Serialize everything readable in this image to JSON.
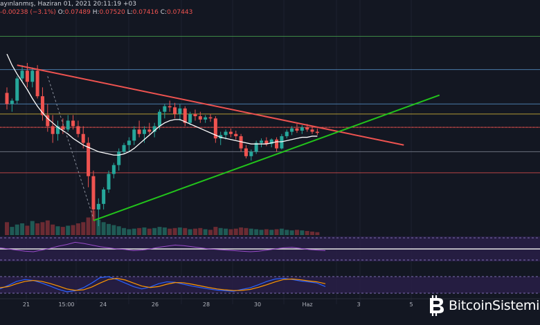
{
  "header": {
    "line1": "ayınlanmış, Haziran 01, 2021 20:11:19 +03",
    "change": "-0.00238 (−3.1%)",
    "o_label": "O:",
    "o_value": "0.07489",
    "h_label": "H:",
    "h_value": "0.07520",
    "l_label": "L:",
    "l_value": "0.07416",
    "c_label": "C:",
    "c_value": "0.07443"
  },
  "brand": {
    "text": "BitcoinSistemi",
    "icon": "bitcoin-logo-icon"
  },
  "colors": {
    "background": "#131722",
    "up": "#26a69a",
    "down": "#ef5350",
    "up_volume": "#1f5a55",
    "down_volume": "#6b2b33",
    "ma_line": "#ffffff",
    "resistance": "#ef5350",
    "support": "#22c41b",
    "hline_green": "#4caf50",
    "hline_blue": "#5b9bd5",
    "hline_yellow": "#e8c53a",
    "hline_gray": "#8a8f9c",
    "hline_red": "#ef5350",
    "oscillator_band": "#2a1f4a",
    "stoch_k": "#2962ff",
    "stoch_d": "#ff9800"
  },
  "chart_data": {
    "type": "candlestick",
    "x_tick_labels": [
      "21",
      "15:00",
      "24",
      "26",
      "28",
      "30",
      "Haz",
      "3",
      "5"
    ],
    "ohlc": [
      [
        0.0775,
        0.078,
        0.076,
        0.0765
      ],
      [
        0.0765,
        0.077,
        0.0758,
        0.0768
      ],
      [
        0.0768,
        0.079,
        0.0765,
        0.0788
      ],
      [
        0.0788,
        0.08,
        0.0785,
        0.0795
      ],
      [
        0.0795,
        0.0802,
        0.078,
        0.0785
      ],
      [
        0.0785,
        0.0798,
        0.078,
        0.0795
      ],
      [
        0.0795,
        0.08,
        0.077,
        0.0772
      ],
      [
        0.0772,
        0.078,
        0.075,
        0.0755
      ],
      [
        0.0755,
        0.0765,
        0.074,
        0.0745
      ],
      [
        0.0745,
        0.0755,
        0.073,
        0.0738
      ],
      [
        0.0738,
        0.075,
        0.0732,
        0.0745
      ],
      [
        0.0745,
        0.0752,
        0.0738,
        0.0742
      ],
      [
        0.0742,
        0.0755,
        0.074,
        0.075
      ],
      [
        0.075,
        0.0755,
        0.0742,
        0.0745
      ],
      [
        0.0745,
        0.075,
        0.0735,
        0.0738
      ],
      [
        0.0738,
        0.0745,
        0.0725,
        0.073
      ],
      [
        0.073,
        0.0735,
        0.069,
        0.07
      ],
      [
        0.07,
        0.0705,
        0.066,
        0.067
      ],
      [
        0.067,
        0.068,
        0.0655,
        0.0675
      ],
      [
        0.0675,
        0.069,
        0.067,
        0.0688
      ],
      [
        0.0688,
        0.0705,
        0.0685,
        0.0702
      ],
      [
        0.0702,
        0.0712,
        0.0698,
        0.071
      ],
      [
        0.071,
        0.0725,
        0.0705,
        0.0722
      ],
      [
        0.0722,
        0.073,
        0.072,
        0.0728
      ],
      [
        0.0728,
        0.0735,
        0.0722,
        0.0732
      ],
      [
        0.0732,
        0.0745,
        0.0728,
        0.0742
      ],
      [
        0.0742,
        0.075,
        0.0735,
        0.0738
      ],
      [
        0.0738,
        0.0745,
        0.073,
        0.0742
      ],
      [
        0.0742,
        0.0748,
        0.0738,
        0.074
      ],
      [
        0.074,
        0.0748,
        0.0735,
        0.0745
      ],
      [
        0.0745,
        0.076,
        0.0742,
        0.0758
      ],
      [
        0.0758,
        0.0765,
        0.0752,
        0.0763
      ],
      [
        0.0763,
        0.0768,
        0.0758,
        0.0762
      ],
      [
        0.0762,
        0.0766,
        0.0752,
        0.0756
      ],
      [
        0.0756,
        0.0765,
        0.075,
        0.0761
      ],
      [
        0.0761,
        0.0763,
        0.0745,
        0.0748
      ],
      [
        0.0748,
        0.0758,
        0.0746,
        0.0756
      ],
      [
        0.0756,
        0.076,
        0.075,
        0.0754
      ],
      [
        0.0754,
        0.0758,
        0.0748,
        0.0751
      ],
      [
        0.0751,
        0.0755,
        0.0748,
        0.0753
      ],
      [
        0.0753,
        0.0756,
        0.0749,
        0.0752
      ],
      [
        0.0752,
        0.0754,
        0.073,
        0.0734
      ],
      [
        0.0734,
        0.074,
        0.0728,
        0.0737
      ],
      [
        0.0737,
        0.0742,
        0.0733,
        0.074
      ],
      [
        0.074,
        0.0743,
        0.0735,
        0.0738
      ],
      [
        0.0738,
        0.0741,
        0.0733,
        0.0736
      ],
      [
        0.0736,
        0.0738,
        0.0722,
        0.0725
      ],
      [
        0.0725,
        0.0728,
        0.0716,
        0.0718
      ],
      [
        0.0718,
        0.0724,
        0.0714,
        0.0722
      ],
      [
        0.0722,
        0.0732,
        0.072,
        0.073
      ],
      [
        0.073,
        0.0734,
        0.0726,
        0.0732
      ],
      [
        0.0732,
        0.0735,
        0.0727,
        0.0729
      ],
      [
        0.0729,
        0.0734,
        0.0726,
        0.0733
      ],
      [
        0.0733,
        0.0735,
        0.0722,
        0.0725
      ],
      [
        0.0725,
        0.0738,
        0.0724,
        0.0736
      ],
      [
        0.0736,
        0.0742,
        0.0734,
        0.074
      ],
      [
        0.074,
        0.0745,
        0.0737,
        0.0743
      ],
      [
        0.0743,
        0.0747,
        0.0739,
        0.0741
      ],
      [
        0.0741,
        0.0746,
        0.0738,
        0.0744
      ],
      [
        0.0744,
        0.0747,
        0.074,
        0.0742
      ],
      [
        0.0742,
        0.0744,
        0.0738,
        0.074
      ],
      [
        0.074,
        0.0743,
        0.0737,
        0.0739
      ]
    ],
    "volume": [
      22,
      14,
      18,
      20,
      16,
      24,
      20,
      22,
      25,
      18,
      15,
      14,
      16,
      17,
      20,
      22,
      30,
      42,
      26,
      22,
      19,
      17,
      15,
      12,
      10,
      11,
      12,
      13,
      11,
      12,
      14,
      13,
      11,
      12,
      13,
      12,
      10,
      11,
      12,
      10,
      9,
      14,
      12,
      11,
      10,
      11,
      13,
      12,
      11,
      10,
      9,
      10,
      9,
      10,
      11,
      9,
      8,
      9,
      8,
      7,
      6,
      5
    ],
    "moving_average": [
      0.081,
      0.08,
      0.0792,
      0.0785,
      0.0778,
      0.077,
      0.0763,
      0.0757,
      0.0752,
      0.0748,
      0.0744,
      0.0741,
      0.0738,
      0.0734,
      0.0731,
      0.0728,
      0.0726,
      0.0724,
      0.0722,
      0.0721,
      0.072,
      0.0719,
      0.0719,
      0.072,
      0.0722,
      0.0725,
      0.0729,
      0.0733,
      0.0737,
      0.0741,
      0.0745,
      0.0748,
      0.075,
      0.0751,
      0.0751,
      0.0749,
      0.0747,
      0.0745,
      0.0743,
      0.0741,
      0.0739,
      0.0737,
      0.0735,
      0.0734,
      0.0733,
      0.0732,
      0.0731,
      0.073,
      0.0729,
      0.0729,
      0.0729,
      0.0729,
      0.073,
      0.0731,
      0.0731,
      0.0732,
      0.0733,
      0.0734,
      0.0735,
      0.0735,
      0.0736,
      0.0736
    ],
    "trendlines": [
      {
        "name": "resistance",
        "from": [
          2,
          0.08
        ],
        "to": [
          78,
          0.0728
        ]
      },
      {
        "name": "support",
        "from": [
          17,
          0.066
        ],
        "to": [
          85,
          0.0773
        ]
      }
    ],
    "horizontal_levels": [
      {
        "price": 0.0826,
        "color": "hline_green"
      },
      {
        "price": 0.0796,
        "color": "hline_blue"
      },
      {
        "price": 0.0765,
        "color": "hline_blue"
      },
      {
        "price": 0.0756,
        "color": "hline_yellow"
      },
      {
        "price": 0.0744,
        "color": "hline_red"
      },
      {
        "price": 0.0722,
        "color": "hline_gray"
      },
      {
        "price": 0.0703,
        "color": "hline_red"
      }
    ],
    "oscillator1": [
      52,
      50,
      48,
      46,
      45,
      48,
      51,
      55,
      58,
      62,
      60,
      57,
      54,
      52,
      50,
      49,
      47,
      48,
      50,
      53,
      55,
      57,
      56,
      54,
      52,
      50,
      49,
      48,
      47,
      46,
      45,
      46,
      48,
      50,
      52,
      53,
      51,
      49,
      48,
      47
    ],
    "stoch_k": [
      30,
      45,
      62,
      70,
      66,
      55,
      42,
      28,
      18,
      22,
      35,
      55,
      78,
      82,
      70,
      55,
      40,
      30,
      38,
      52,
      60,
      58,
      50,
      42,
      36,
      30,
      25,
      22,
      20,
      28,
      35,
      48,
      62,
      72,
      75,
      70,
      64,
      60,
      55,
      40
    ],
    "stoch_d": [
      35,
      40,
      52,
      62,
      66,
      62,
      53,
      42,
      30,
      24,
      26,
      38,
      55,
      70,
      75,
      68,
      55,
      42,
      36,
      40,
      50,
      57,
      56,
      50,
      43,
      36,
      30,
      26,
      23,
      24,
      28,
      37,
      48,
      60,
      70,
      72,
      69,
      64,
      60,
      52
    ]
  }
}
